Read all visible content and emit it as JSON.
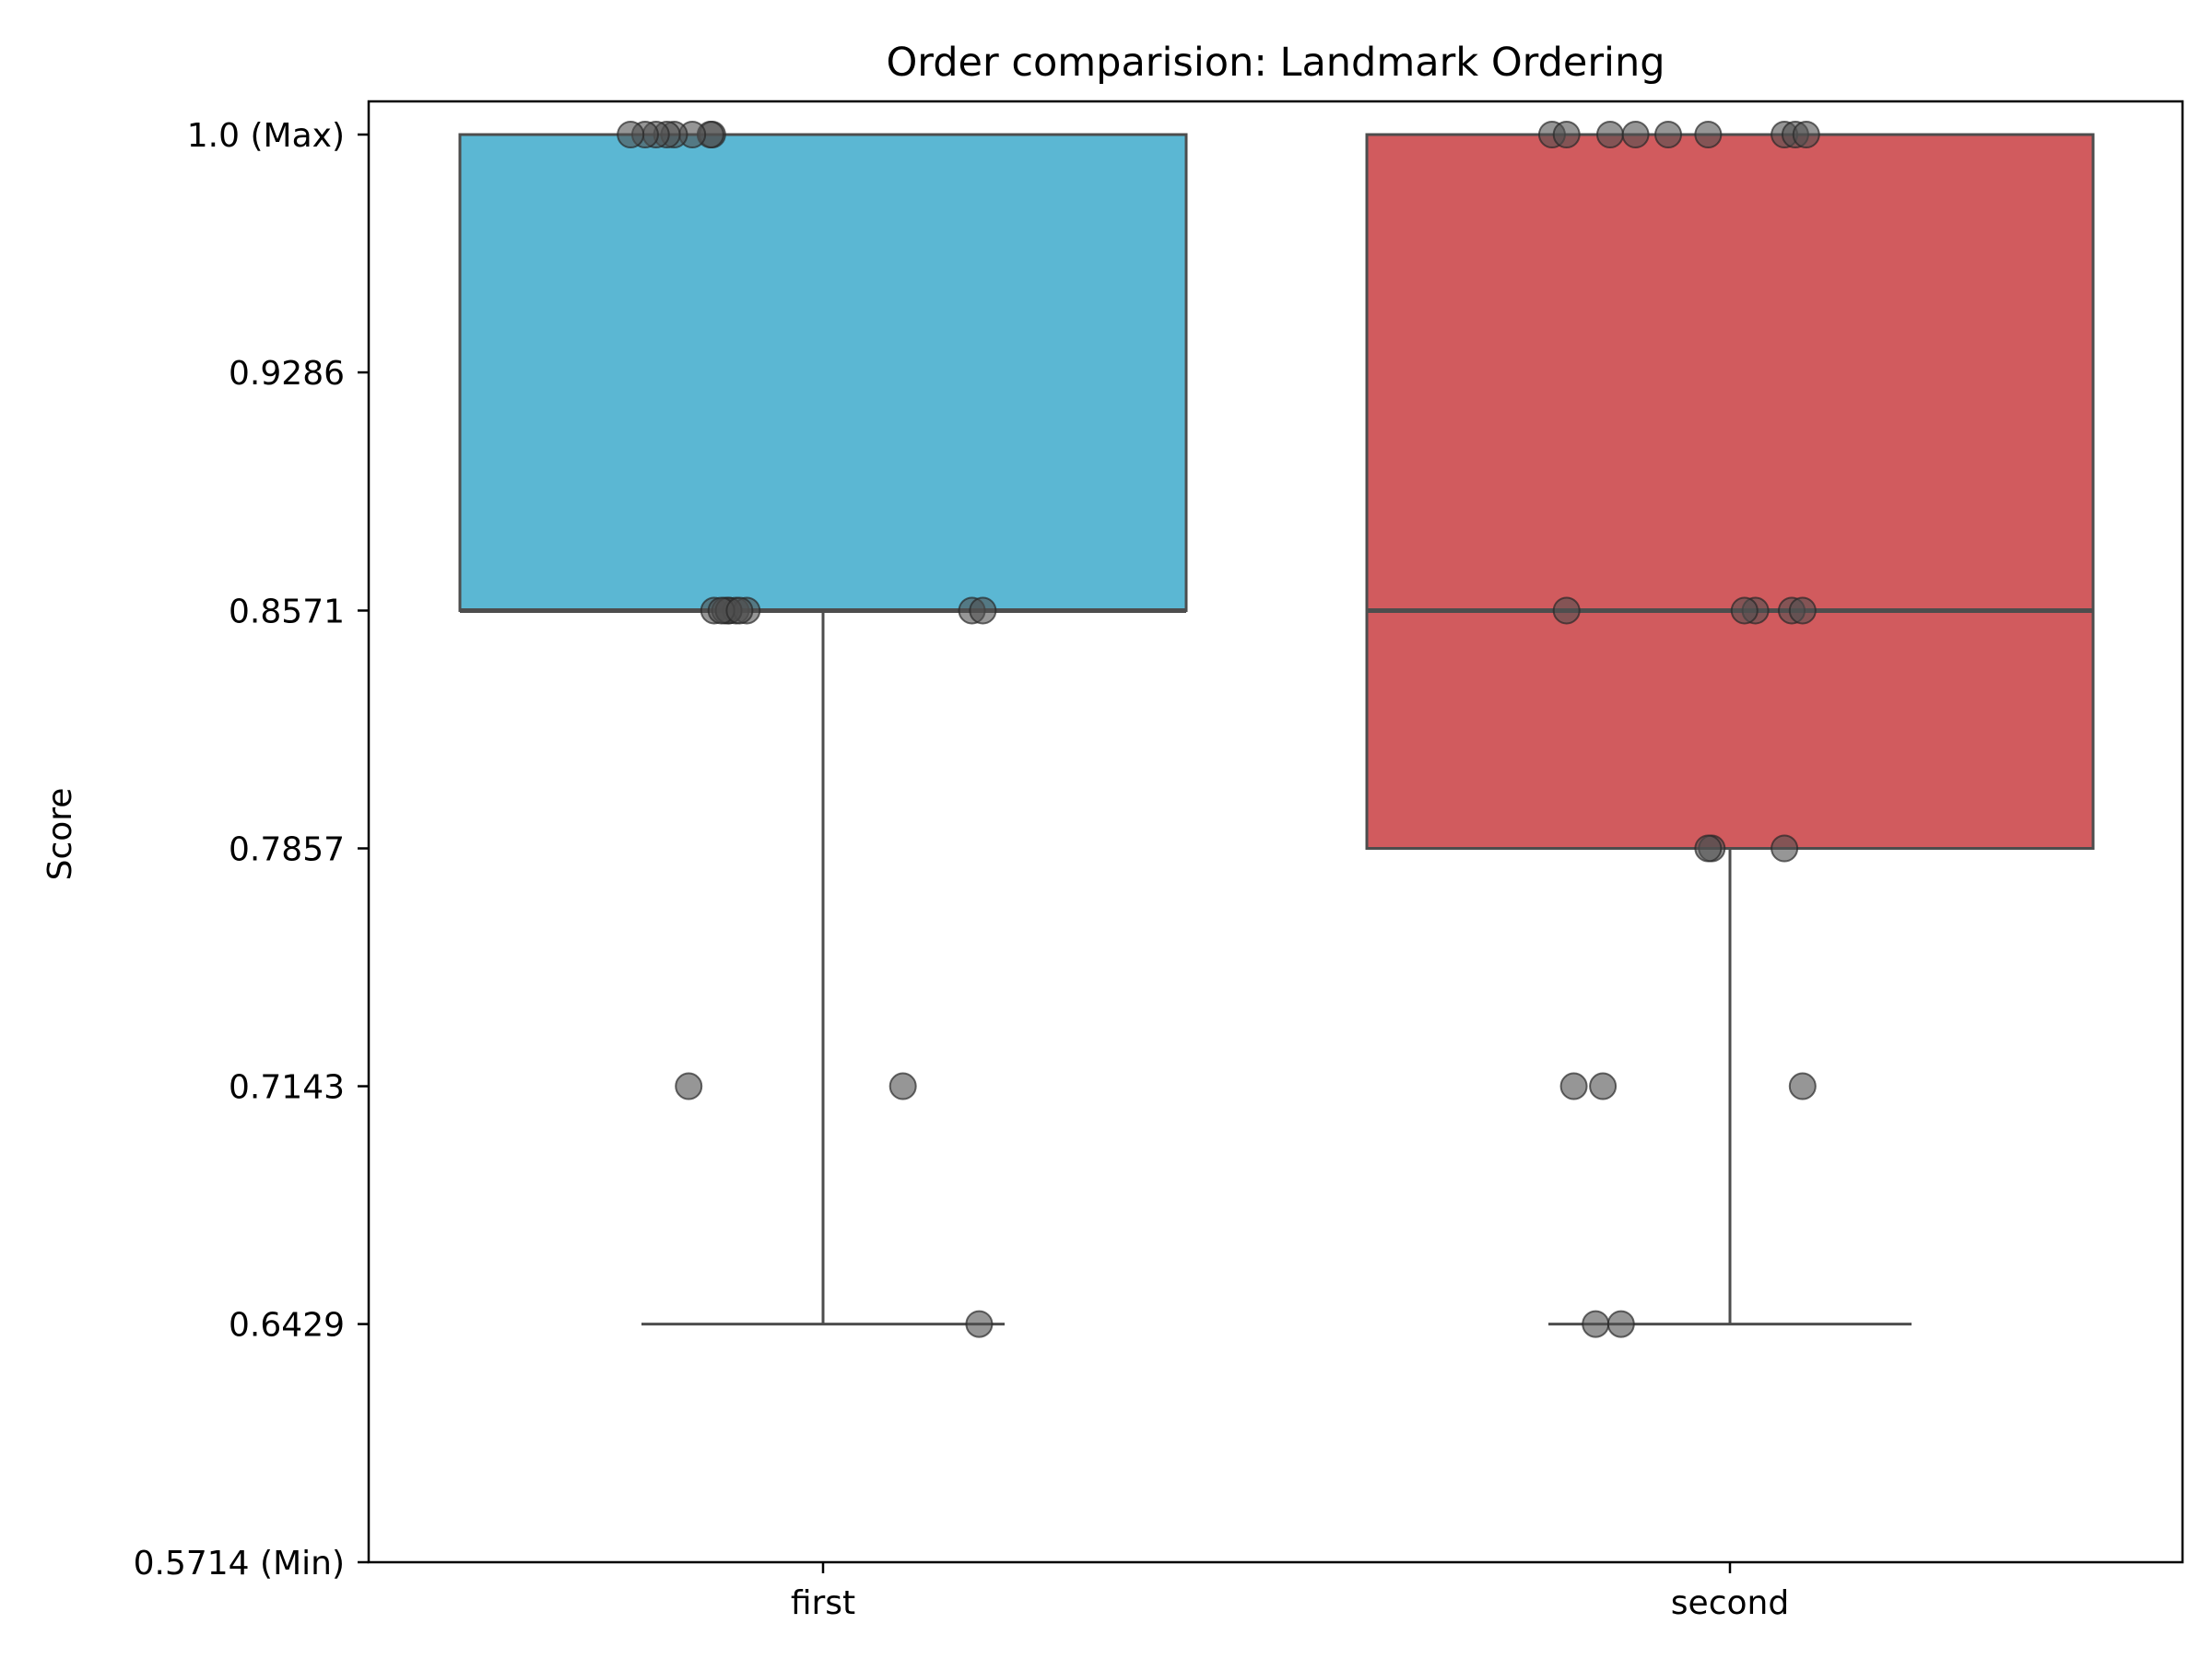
{
  "chart_data": {
    "type": "box",
    "title": "Order comparision: Landmark Ordering",
    "xlabel": "",
    "ylabel": "Score",
    "ylim": [
      0.5714,
      1.0
    ],
    "yticks": [
      {
        "value": 1.0,
        "label": "1.0 (Max)"
      },
      {
        "value": 0.9286,
        "label": "0.9286"
      },
      {
        "value": 0.8571,
        "label": "0.8571"
      },
      {
        "value": 0.7857,
        "label": "0.7857"
      },
      {
        "value": 0.7143,
        "label": "0.7143"
      },
      {
        "value": 0.6429,
        "label": "0.6429"
      },
      {
        "value": 0.5714,
        "label": "0.5714 (Min)"
      }
    ],
    "categories": [
      "first",
      "second"
    ],
    "grid": false,
    "boxes": [
      {
        "category": "first",
        "color": "#5bb7d3",
        "whisker_low": 0.6429,
        "q1": 0.8571,
        "median": 0.8571,
        "q3": 1.0,
        "whisker_high": 1.0
      },
      {
        "category": "second",
        "color": "#d15b5e",
        "whisker_low": 0.6429,
        "q1": 0.7857,
        "median": 0.8571,
        "q3": 1.0,
        "whisker_high": 1.0
      }
    ],
    "points": [
      {
        "category": "first",
        "values": [
          1.0,
          1.0,
          1.0,
          1.0,
          1.0,
          1.0,
          1.0,
          1.0,
          0.8571,
          0.8571,
          0.8571,
          0.8571,
          0.8571,
          0.8571,
          0.8571,
          0.8571,
          0.8571,
          0.8571,
          0.7143,
          0.7143,
          0.6429
        ]
      },
      {
        "category": "second",
        "values": [
          1.0,
          1.0,
          1.0,
          1.0,
          1.0,
          1.0,
          1.0,
          1.0,
          1.0,
          0.8571,
          0.8571,
          0.8571,
          0.8571,
          0.8571,
          0.7857,
          0.7857,
          0.7857,
          0.7143,
          0.7143,
          0.7143,
          0.6429,
          0.6429
        ]
      }
    ]
  }
}
